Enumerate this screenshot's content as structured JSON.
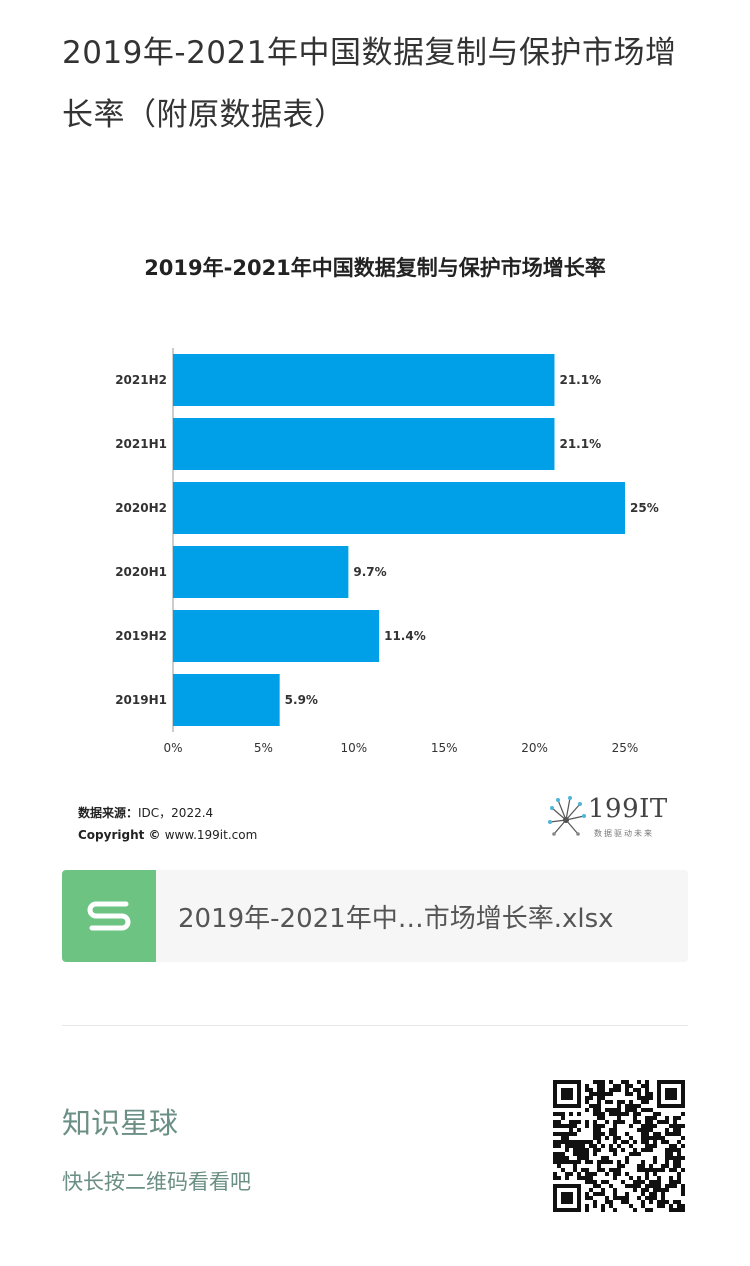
{
  "article": {
    "title": "2019年-2021年中国数据复制与保护市场增长率（附原数据表）"
  },
  "chart_data": {
    "type": "bar",
    "orientation": "horizontal",
    "title": "2019年-2021年中国数据复制与保护市场增长率",
    "categories": [
      "2021H2",
      "2021H1",
      "2020H2",
      "2020H1",
      "2019H2",
      "2019H1"
    ],
    "values": [
      21.1,
      21.1,
      25,
      9.7,
      11.4,
      5.9
    ],
    "value_labels": [
      "21.1%",
      "21.1%",
      "25%",
      "9.7%",
      "11.4%",
      "5.9%"
    ],
    "xlim": [
      0,
      25
    ],
    "xticks": [
      "0%",
      "5%",
      "10%",
      "15%",
      "20%",
      "25%"
    ],
    "grid": false,
    "bar_color": "#00a0e9"
  },
  "source": {
    "label": "数据来源：",
    "value": "IDC，2022.4",
    "copyright_label": "Copyright ©",
    "copyright_value": "www.199it.com"
  },
  "brand": {
    "name": "199IT",
    "slogan": "数据驱动未来"
  },
  "file": {
    "name": "2019年-2021年中…市场增长率.xlsx",
    "icon": "spreadsheet-s-icon",
    "icon_color": "#6cc382"
  },
  "promo": {
    "title": "知识星球",
    "subtitle": "快长按二维码看看吧",
    "accent": "#6b8f84"
  }
}
